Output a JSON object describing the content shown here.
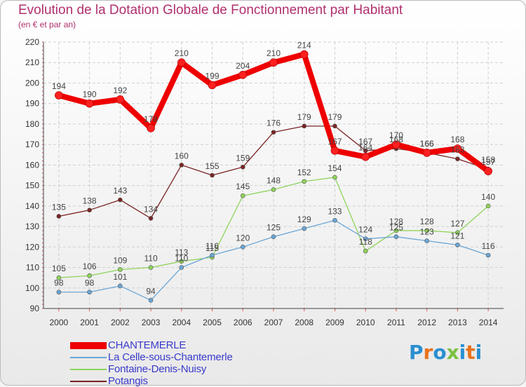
{
  "page": {
    "title": "Evolution de la Dotation Globale de Fonctionnement par Habitant",
    "subtitle": "(en € et par an)"
  },
  "logo": {
    "text": "Proxiti",
    "colors": [
      "#2a8fd0",
      "#e9731c",
      "#2a8fd0",
      "#7cc142",
      "#2a8fd0",
      "#e9731c",
      "#2a8fd0"
    ]
  },
  "chart_data": {
    "type": "line",
    "title": "Evolution de la Dotation Globale de Fonctionnement par Habitant",
    "subtitle": "(en € et par an)",
    "x": [
      2000,
      2001,
      2002,
      2003,
      2004,
      2005,
      2006,
      2007,
      2008,
      2009,
      2010,
      2011,
      2012,
      2013,
      2014
    ],
    "ylim": [
      90,
      220
    ],
    "yticks": [
      90,
      100,
      110,
      120,
      130,
      140,
      150,
      160,
      170,
      180,
      190,
      200,
      210,
      220
    ],
    "grid": true,
    "legend_position": "bottom-left",
    "series": [
      {
        "name": "CHANTEMERLE",
        "color": "#ee0000",
        "values": [
          194,
          190,
          192,
          178,
          210,
          199,
          204,
          210,
          214,
          167,
          164,
          170,
          166,
          168,
          157
        ]
      },
      {
        "name": "La Celle-sous-Chantemerle",
        "color": "#6aa6d6",
        "values": [
          98,
          98,
          101,
          94,
          110,
          116,
          120,
          125,
          129,
          133,
          124,
          125,
          123,
          121,
          116
        ]
      },
      {
        "name": "Fontaine-Denis-Nuisy",
        "color": "#8fd45a",
        "values": [
          105,
          106,
          109,
          110,
          113,
          115,
          145,
          148,
          152,
          154,
          118,
          128,
          128,
          127,
          140
        ]
      },
      {
        "name": "Potangis",
        "color": "#7a2424",
        "values": [
          135,
          138,
          143,
          134,
          160,
          155,
          159,
          176,
          179,
          179,
          167,
          168,
          166,
          163,
          158
        ]
      }
    ]
  }
}
